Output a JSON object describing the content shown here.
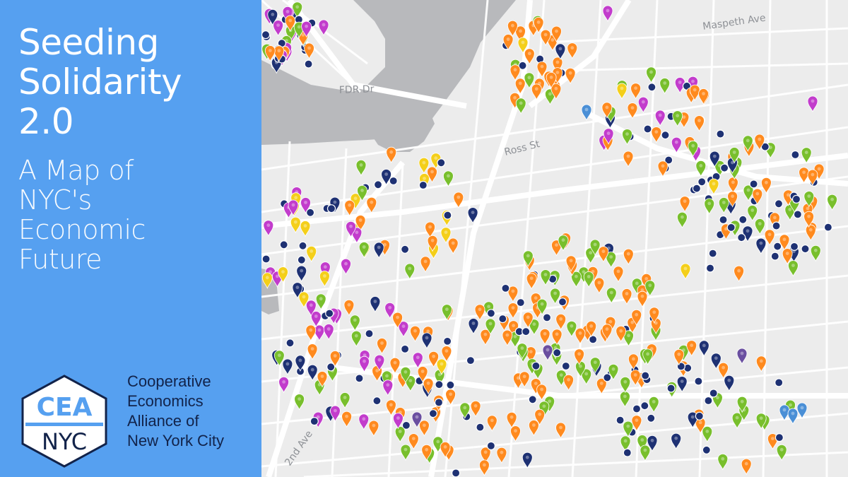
{
  "panel": {
    "title": [
      "Seeding",
      "Solidarity",
      "2.0"
    ],
    "subtitle": [
      "A Map of",
      "NYC's",
      "Economic",
      "Future"
    ],
    "logo_text": [
      "CEA",
      "NYC"
    ],
    "org_name": [
      "Cooperative",
      "Economics",
      "Alliance of",
      "New York City"
    ]
  },
  "map": {
    "street_labels": [
      "Maspeth Ave",
      "FDR Dr",
      "Ross St",
      "2nd Ave"
    ],
    "colors": {
      "land": "#ececec",
      "water": "#b8b9bc",
      "road": "#ffffff",
      "panel": "#56a0f0",
      "navy": "#1e3173",
      "orange": "#ff8a1e",
      "green": "#78bf2c",
      "magenta": "#c23ccc",
      "yellow": "#f4cf1a",
      "lightblue": "#4a8fd6",
      "purple": "#6a4fa0"
    },
    "marker_categories": [
      "orange",
      "green",
      "magenta",
      "yellow",
      "navy",
      "lightblue",
      "purple"
    ]
  }
}
